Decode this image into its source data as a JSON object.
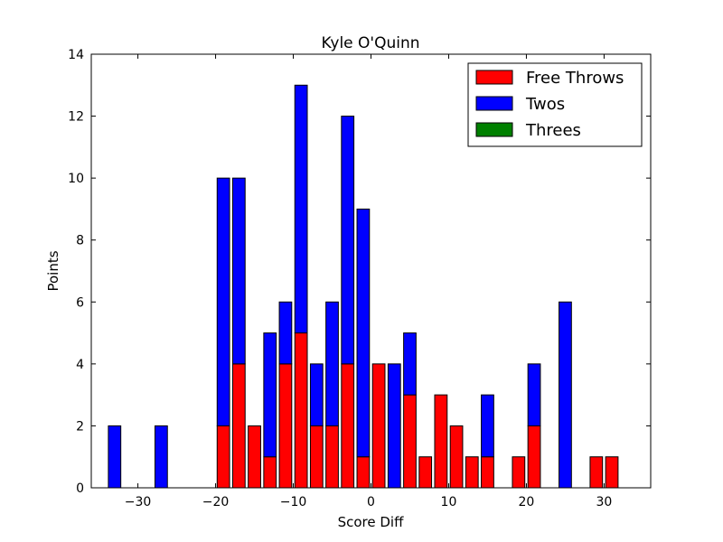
{
  "chart_data": {
    "type": "bar",
    "stacked": true,
    "title": "Kyle O'Quinn",
    "xlabel": "Score Diff",
    "ylabel": "Points",
    "xlim": [
      -36,
      36
    ],
    "ylim": [
      0,
      14
    ],
    "xticks": [
      -30,
      -20,
      -10,
      0,
      10,
      20,
      30
    ],
    "xtick_labels": [
      "−30",
      "−20",
      "−10",
      "0",
      "10",
      "20",
      "30"
    ],
    "yticks": [
      0,
      2,
      4,
      6,
      8,
      10,
      12,
      14
    ],
    "ytick_labels": [
      "0",
      "2",
      "4",
      "6",
      "8",
      "10",
      "12",
      "14"
    ],
    "bar_width": 1.6,
    "grid": false,
    "legend_position": "top-right",
    "x": [
      -35,
      -33,
      -31,
      -29,
      -27,
      -25,
      -23,
      -21,
      -19,
      -17,
      -15,
      -13,
      -11,
      -9,
      -7,
      -5,
      -3,
      -1,
      1,
      3,
      5,
      7,
      9,
      11,
      13,
      15,
      17,
      19,
      21,
      23,
      25,
      27,
      29,
      31,
      33,
      35
    ],
    "series": [
      {
        "name": "Free Throws",
        "color": "#ff0000",
        "values": [
          0,
          0,
          0,
          0,
          0,
          0,
          0,
          0,
          2,
          4,
          2,
          1,
          4,
          5,
          2,
          2,
          4,
          1,
          4,
          0,
          3,
          1,
          3,
          2,
          1,
          1,
          0,
          1,
          2,
          0,
          0,
          0,
          1,
          1,
          0,
          0
        ]
      },
      {
        "name": "Twos",
        "color": "#0000ff",
        "values": [
          0,
          2,
          0,
          0,
          2,
          0,
          0,
          0,
          8,
          6,
          0,
          4,
          2,
          8,
          2,
          4,
          8,
          8,
          0,
          4,
          2,
          0,
          0,
          0,
          0,
          2,
          0,
          0,
          2,
          0,
          6,
          0,
          0,
          0,
          0,
          0
        ]
      },
      {
        "name": "Threes",
        "color": "#008000",
        "values": [
          0,
          0,
          0,
          0,
          0,
          0,
          0,
          0,
          0,
          0,
          0,
          0,
          0,
          0,
          0,
          0,
          0,
          0,
          0,
          0,
          0,
          0,
          0,
          0,
          0,
          0,
          0,
          0,
          0,
          0,
          0,
          0,
          0,
          0,
          0,
          0
        ]
      }
    ]
  }
}
